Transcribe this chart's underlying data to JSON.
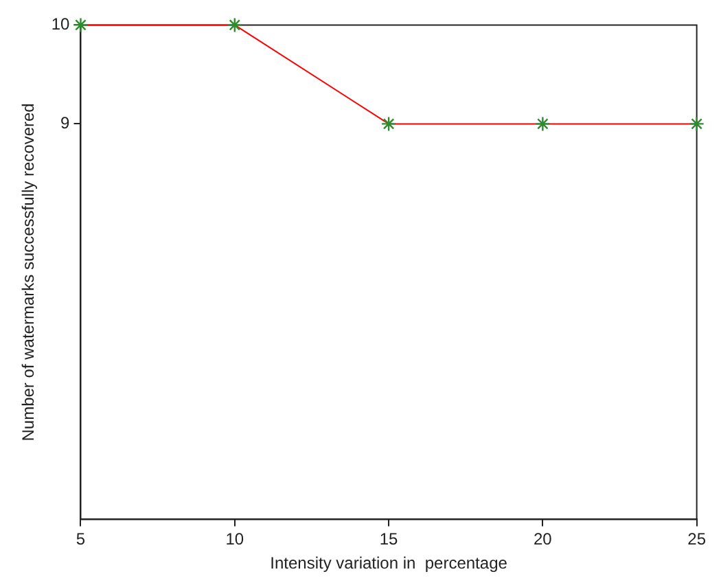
{
  "chart_data": {
    "type": "line",
    "xlabel": "Intensity variation in  percentage",
    "ylabel": "Number of watermarks successfully recovered",
    "x": [
      5,
      10,
      15,
      20,
      25
    ],
    "series": [
      {
        "color": "#ff0000",
        "values": [
          10,
          10,
          9,
          9,
          9
        ]
      }
    ],
    "xlim": [
      5,
      25
    ],
    "xticks": [
      5,
      10,
      15,
      20,
      25
    ],
    "ylim": [
      5,
      10
    ],
    "yticks": [
      9,
      10
    ],
    "marker": "cross",
    "line_style": "solid",
    "legend": false
  }
}
